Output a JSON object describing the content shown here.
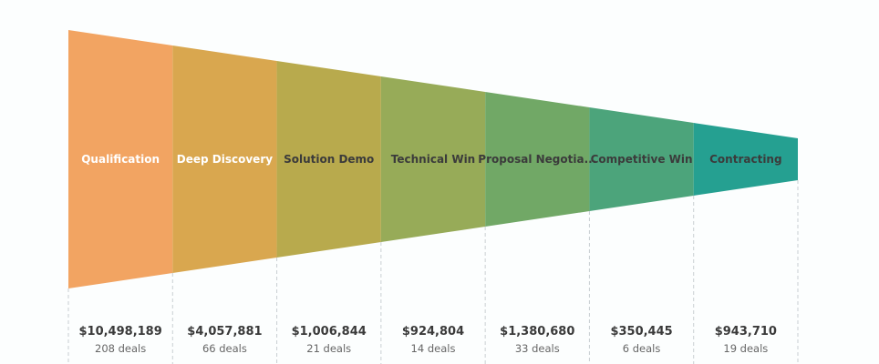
{
  "chart_data": {
    "type": "funnel",
    "stages": [
      {
        "name": "Qualification",
        "value_label": "$10,498,189",
        "value": 10498189,
        "deals_label": "208 deals",
        "deals": 208,
        "color": "#f2a462",
        "text_color": "#ffffff"
      },
      {
        "name": "Deep Discovery",
        "value_label": "$4,057,881",
        "value": 4057881,
        "deals_label": "66 deals",
        "deals": 66,
        "color": "#d9a74f",
        "text_color": "#ffffff"
      },
      {
        "name": "Solution Demo",
        "value_label": "$1,006,844",
        "value": 1006844,
        "deals_label": "21 deals",
        "deals": 21,
        "color": "#b8aa4d",
        "text_color": "#3b3b3b"
      },
      {
        "name": "Technical Win",
        "value_label": "$924,804",
        "value": 924804,
        "deals_label": "14 deals",
        "deals": 14,
        "color": "#97ab58",
        "text_color": "#3b3b3b"
      },
      {
        "name": "Proposal Negotia...",
        "value_label": "$1,380,680",
        "value": 1380680,
        "deals_label": "33 deals",
        "deals": 33,
        "color": "#71a866",
        "text_color": "#3b3b3b"
      },
      {
        "name": "Competitive Win",
        "value_label": "$350,445",
        "value": 350445,
        "deals_label": "6 deals",
        "deals": 6,
        "color": "#4ca47b",
        "text_color": "#3b3b3b"
      },
      {
        "name": "Contracting",
        "value_label": "$943,710",
        "value": 943710,
        "deals_label": "19 deals",
        "deals": 19,
        "color": "#25a091",
        "text_color": "#3b3b3b"
      }
    ]
  }
}
